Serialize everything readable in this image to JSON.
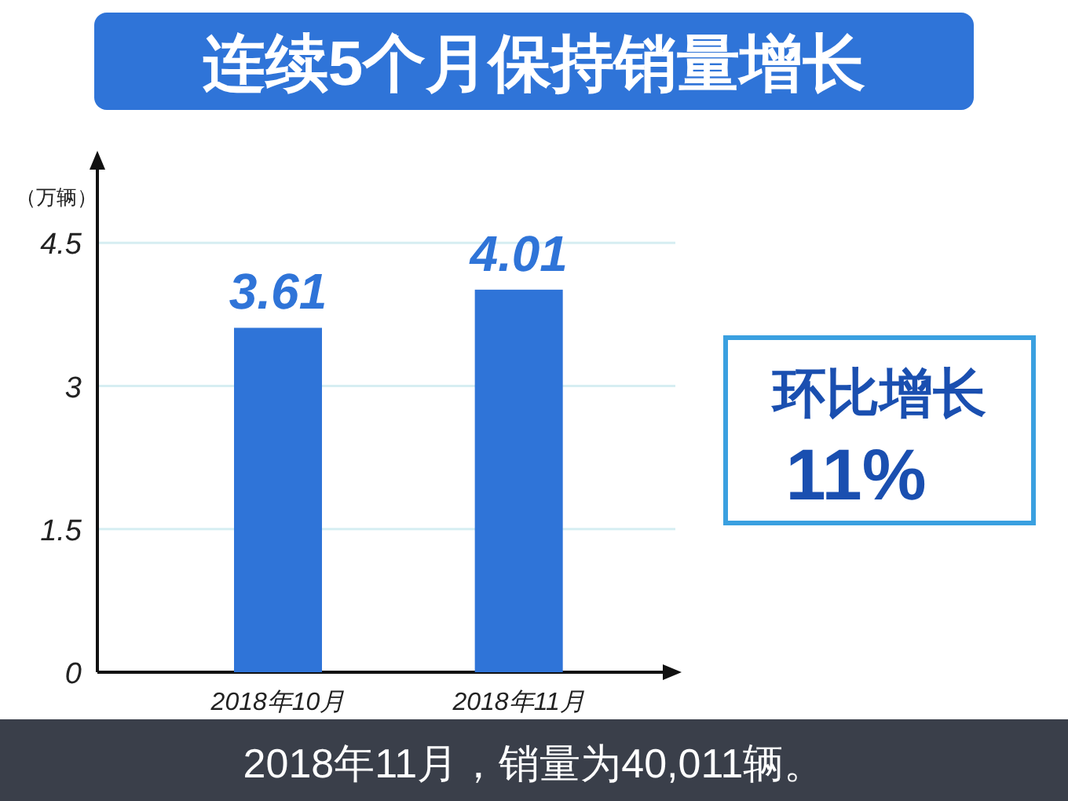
{
  "chart_data": {
    "type": "bar",
    "title": "连续5个月保持销量增长",
    "ylabel": "（万辆）",
    "categories": [
      "2018年10月",
      "2018年11月"
    ],
    "values": [
      3.61,
      4.01
    ],
    "color": "#2f74d8",
    "ylim": [
      0,
      5.4
    ],
    "yticks": [
      0,
      1.5,
      3,
      4.5
    ],
    "grid": "y",
    "data_labels": true,
    "annotations": [
      "环比增长",
      "11%",
      "2018年11月，销量为40,011辆。"
    ]
  }
}
